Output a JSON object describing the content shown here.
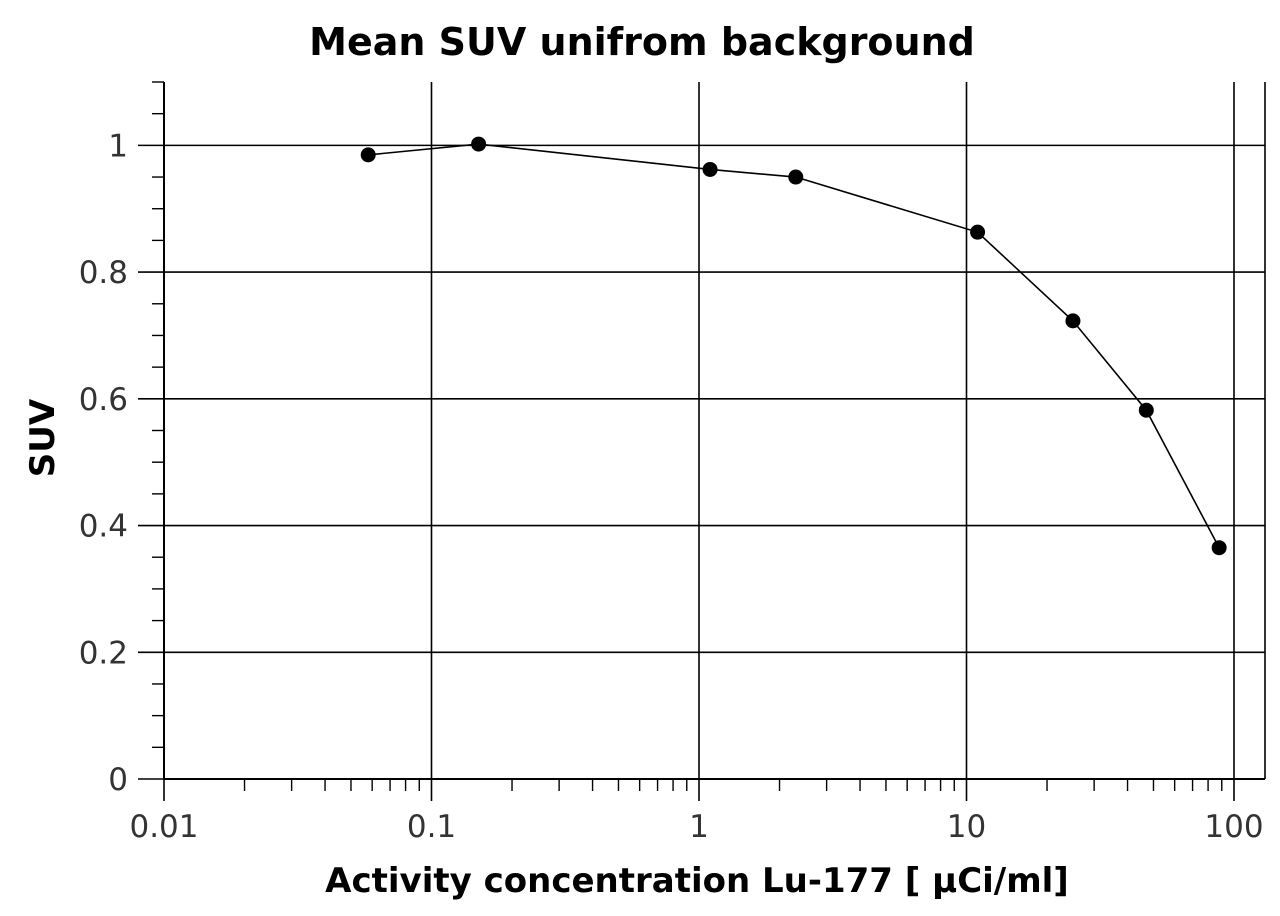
{
  "chart_data": {
    "type": "line",
    "title": "Mean SUV unifrom background",
    "xlabel": "Activity concentration Lu-177 [ μCi/ml]",
    "ylabel": "SUV",
    "x_scale": "log",
    "xlim": [
      0.01,
      100
    ],
    "ylim": [
      0,
      1.1
    ],
    "x_ticks": [
      0.01,
      0.1,
      1,
      10,
      100
    ],
    "x_tick_labels": [
      "0.01",
      "0.1",
      "1",
      "10",
      "100"
    ],
    "y_ticks": [
      0,
      0.2,
      0.4,
      0.6,
      0.8,
      1
    ],
    "y_tick_labels": [
      "0",
      "0.2",
      "0.4",
      "0.6",
      "0.8",
      "1"
    ],
    "grid": true,
    "legend": "none",
    "series": [
      {
        "x": [
          0.058,
          0.15,
          1.1,
          2.3,
          11,
          25,
          47,
          88
        ],
        "y": [
          0.985,
          1.002,
          0.962,
          0.95,
          0.863,
          0.723,
          0.582,
          0.365
        ],
        "color": "#000000",
        "marker": "circle"
      }
    ]
  }
}
